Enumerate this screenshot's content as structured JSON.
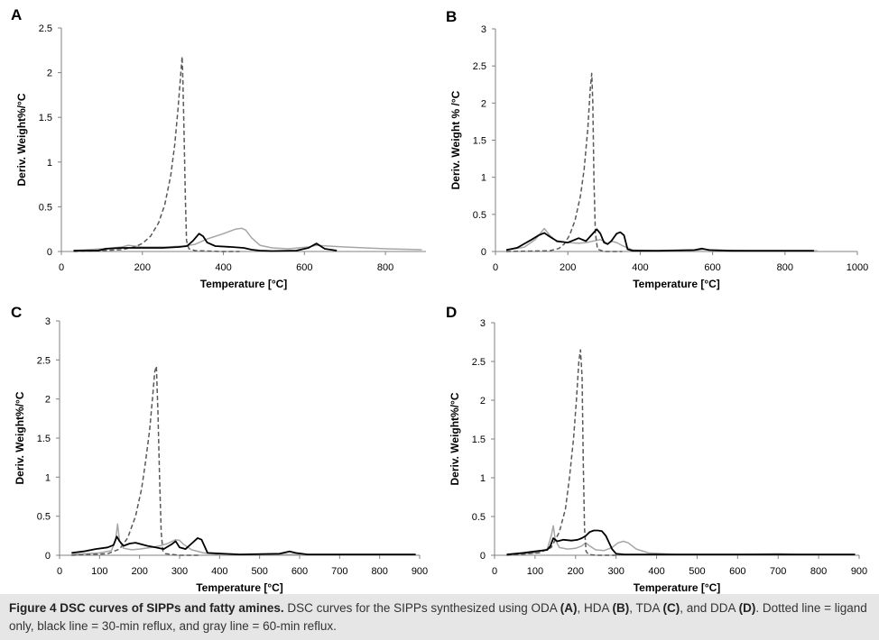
{
  "figure": {
    "caption_title": "Figure 4 DSC curves of SIPPs and fatty amines.",
    "caption_parts": [
      {
        "t": "DSC curves for the SIPPs synthesized using ODA ",
        "b": false
      },
      {
        "t": "(A)",
        "b": true
      },
      {
        "t": ", HDA ",
        "b": false
      },
      {
        "t": "(B)",
        "b": true
      },
      {
        "t": ", TDA ",
        "b": false
      },
      {
        "t": "(C)",
        "b": true
      },
      {
        "t": ", and DDA ",
        "b": false
      },
      {
        "t": "(D)",
        "b": true
      },
      {
        "t": ". Dotted line = ligand only, black line = 30-min reflux, and gray line = 60-min reflux.",
        "b": false
      }
    ]
  },
  "style": {
    "black": "#000000",
    "gray": "#a6a6a6",
    "dotted": "#595959"
  },
  "chart_data": [
    {
      "type": "line",
      "panel": "A",
      "xlabel": "Temperature [°C]",
      "ylabel": "Deriv. Weight%/°C",
      "xlim": [
        0,
        900
      ],
      "ylim": [
        0,
        2.5
      ],
      "xticks": [
        0,
        200,
        400,
        600,
        800
      ],
      "yticks": [
        0,
        0.5,
        1,
        1.5,
        2,
        2.5
      ],
      "tick_labels_y": [
        "0",
        "0.5",
        "1",
        "1.5",
        "2",
        "2.5"
      ],
      "series": [
        {
          "style": "dotted",
          "x": [
            30,
            100,
            150,
            180,
            200,
            220,
            240,
            255,
            270,
            280,
            288,
            295,
            298,
            300,
            303,
            306,
            309,
            315,
            330,
            360,
            400,
            420,
            440
          ],
          "y": [
            0,
            0.01,
            0.02,
            0.05,
            0.09,
            0.17,
            0.32,
            0.52,
            0.85,
            1.2,
            1.6,
            2.0,
            2.18,
            1.9,
            1.3,
            0.6,
            0.12,
            0.03,
            0.01,
            0.005,
            0,
            0,
            0
          ]
        },
        {
          "style": "black",
          "x": [
            30,
            90,
            100,
            110,
            150,
            200,
            250,
            290,
            310,
            325,
            340,
            350,
            360,
            380,
            420,
            450,
            470,
            490,
            520,
            580,
            610,
            630,
            650,
            680
          ],
          "y": [
            0.01,
            0.01,
            0.02,
            0.03,
            0.04,
            0.04,
            0.04,
            0.05,
            0.06,
            0.12,
            0.2,
            0.17,
            0.1,
            0.06,
            0.05,
            0.04,
            0.02,
            0.01,
            0.005,
            0.01,
            0.04,
            0.09,
            0.03,
            0.01
          ]
        },
        {
          "style": "gray",
          "x": [
            30,
            100,
            150,
            165,
            180,
            200,
            260,
            300,
            330,
            360,
            400,
            430,
            445,
            455,
            470,
            490,
            520,
            560,
            610,
            630,
            660,
            700,
            800,
            890
          ],
          "y": [
            0.01,
            0.03,
            0.05,
            0.07,
            0.06,
            0.05,
            0.05,
            0.06,
            0.08,
            0.14,
            0.2,
            0.25,
            0.26,
            0.24,
            0.15,
            0.07,
            0.04,
            0.03,
            0.05,
            0.07,
            0.06,
            0.05,
            0.03,
            0.02
          ]
        }
      ]
    },
    {
      "type": "line",
      "panel": "B",
      "xlabel": "Temperature [°C]",
      "ylabel": "Deriv. Weight % /°C",
      "xlim": [
        0,
        1000
      ],
      "ylim": [
        0,
        3
      ],
      "xticks": [
        0,
        200,
        400,
        600,
        800,
        1000
      ],
      "yticks": [
        0,
        0.5,
        1,
        1.5,
        2,
        2.5,
        3
      ],
      "tick_labels_y": [
        "0",
        "0.5",
        "1",
        "1.5",
        "2",
        "2.5",
        "3"
      ],
      "series": [
        {
          "style": "dotted",
          "x": [
            30,
            150,
            175,
            190,
            205,
            220,
            235,
            245,
            255,
            262,
            266,
            269,
            272,
            276,
            282,
            300,
            350
          ],
          "y": [
            0,
            0.01,
            0.04,
            0.1,
            0.22,
            0.42,
            0.75,
            1.1,
            1.65,
            2.2,
            2.4,
            2.0,
            1.0,
            0.25,
            0.03,
            0,
            0
          ]
        },
        {
          "style": "black",
          "x": [
            30,
            60,
            100,
            120,
            135,
            150,
            170,
            200,
            230,
            250,
            265,
            280,
            290,
            300,
            310,
            320,
            335,
            345,
            355,
            365,
            380,
            450,
            550,
            570,
            590,
            650,
            750,
            880
          ],
          "y": [
            0.02,
            0.05,
            0.16,
            0.22,
            0.25,
            0.2,
            0.14,
            0.12,
            0.18,
            0.14,
            0.22,
            0.3,
            0.24,
            0.12,
            0.1,
            0.14,
            0.24,
            0.26,
            0.22,
            0.03,
            0.01,
            0.01,
            0.02,
            0.04,
            0.02,
            0.01,
            0.01,
            0.01
          ]
        },
        {
          "style": "gray",
          "x": [
            30,
            80,
            110,
            125,
            135,
            150,
            170,
            200,
            230,
            250,
            270,
            290,
            300,
            310,
            320,
            335,
            350,
            380,
            450,
            560,
            575,
            600,
            700,
            890
          ],
          "y": [
            0.02,
            0.06,
            0.16,
            0.25,
            0.31,
            0.22,
            0.13,
            0.12,
            0.11,
            0.12,
            0.14,
            0.16,
            0.14,
            0.1,
            0.14,
            0.12,
            0.08,
            0.02,
            0.01,
            0.02,
            0.03,
            0.02,
            0.01,
            0.01
          ]
        }
      ]
    },
    {
      "type": "line",
      "panel": "C",
      "xlabel": "Temperature [°C]",
      "ylabel": "Deriv. Weight%/°C",
      "xlim": [
        0,
        900
      ],
      "ylim": [
        0,
        3
      ],
      "xticks": [
        0,
        100,
        200,
        300,
        400,
        500,
        600,
        700,
        800,
        900
      ],
      "yticks": [
        0,
        0.5,
        1,
        1.5,
        2,
        2.5,
        3
      ],
      "tick_labels_y": [
        "0",
        "0.5",
        "1",
        "1.5",
        "2",
        "2.5",
        "3"
      ],
      "series": [
        {
          "style": "dotted",
          "x": [
            30,
            120,
            150,
            170,
            190,
            205,
            215,
            225,
            232,
            238,
            242,
            246,
            250,
            254,
            258,
            265,
            300,
            350
          ],
          "y": [
            0,
            0.02,
            0.08,
            0.22,
            0.5,
            0.85,
            1.2,
            1.6,
            2.0,
            2.35,
            2.42,
            1.8,
            1.0,
            0.3,
            0.06,
            0.02,
            0,
            0
          ]
        },
        {
          "style": "black",
          "x": [
            30,
            60,
            90,
            120,
            135,
            143,
            150,
            160,
            175,
            190,
            205,
            220,
            240,
            260,
            280,
            290,
            300,
            315,
            330,
            345,
            355,
            370,
            450,
            550,
            575,
            590,
            620,
            800,
            890
          ],
          "y": [
            0.03,
            0.05,
            0.08,
            0.1,
            0.13,
            0.24,
            0.18,
            0.12,
            0.15,
            0.16,
            0.14,
            0.12,
            0.1,
            0.08,
            0.14,
            0.18,
            0.1,
            0.08,
            0.15,
            0.22,
            0.2,
            0.03,
            0.01,
            0.02,
            0.05,
            0.03,
            0.01,
            0.01,
            0.01
          ]
        },
        {
          "style": "gray",
          "x": [
            30,
            100,
            130,
            140,
            145,
            150,
            160,
            180,
            200,
            230,
            250,
            270,
            290,
            300,
            310,
            330,
            360,
            400,
            500,
            700,
            890
          ],
          "y": [
            0.01,
            0.03,
            0.06,
            0.2,
            0.4,
            0.18,
            0.09,
            0.07,
            0.08,
            0.1,
            0.12,
            0.15,
            0.2,
            0.19,
            0.14,
            0.07,
            0.03,
            0.01,
            0.01,
            0.01,
            0.01
          ]
        }
      ]
    },
    {
      "type": "line",
      "panel": "D",
      "xlabel": "Temperature [°C]",
      "ylabel": "Deriv. Weight%/°C",
      "xlim": [
        0,
        900
      ],
      "ylim": [
        0,
        3
      ],
      "xticks": [
        0,
        100,
        200,
        300,
        400,
        500,
        600,
        700,
        800,
        900
      ],
      "yticks": [
        0,
        0.5,
        1,
        1.5,
        2,
        2.5,
        3
      ],
      "tick_labels_y": [
        "0",
        "0.5",
        "1",
        "1.5",
        "2",
        "2.5",
        "3"
      ],
      "series": [
        {
          "style": "dotted",
          "x": [
            30,
            110,
            140,
            160,
            175,
            185,
            195,
            202,
            208,
            212,
            216,
            219,
            222,
            226,
            232,
            250,
            300
          ],
          "y": [
            0,
            0.03,
            0.1,
            0.3,
            0.6,
            1.0,
            1.5,
            2.0,
            2.5,
            2.65,
            2.3,
            1.2,
            0.35,
            0.05,
            0.01,
            0,
            0
          ]
        },
        {
          "style": "black",
          "x": [
            30,
            70,
            100,
            130,
            138,
            145,
            155,
            170,
            190,
            205,
            215,
            225,
            235,
            245,
            255,
            265,
            275,
            290,
            300,
            320,
            400,
            600,
            890
          ],
          "y": [
            0.01,
            0.03,
            0.05,
            0.07,
            0.12,
            0.22,
            0.18,
            0.2,
            0.19,
            0.2,
            0.22,
            0.25,
            0.3,
            0.32,
            0.32,
            0.31,
            0.25,
            0.08,
            0.02,
            0.01,
            0.01,
            0.01,
            0.01
          ]
        },
        {
          "style": "gray",
          "x": [
            30,
            100,
            130,
            140,
            145,
            150,
            160,
            180,
            200,
            215,
            225,
            235,
            250,
            270,
            290,
            305,
            318,
            330,
            350,
            380,
            450,
            600,
            700,
            750,
            890
          ],
          "y": [
            0.01,
            0.03,
            0.08,
            0.25,
            0.38,
            0.2,
            0.1,
            0.08,
            0.09,
            0.12,
            0.16,
            0.12,
            0.07,
            0.06,
            0.1,
            0.16,
            0.18,
            0.16,
            0.08,
            0.03,
            0.01,
            0.01,
            0.02,
            0.01,
            0.01
          ]
        }
      ]
    }
  ]
}
